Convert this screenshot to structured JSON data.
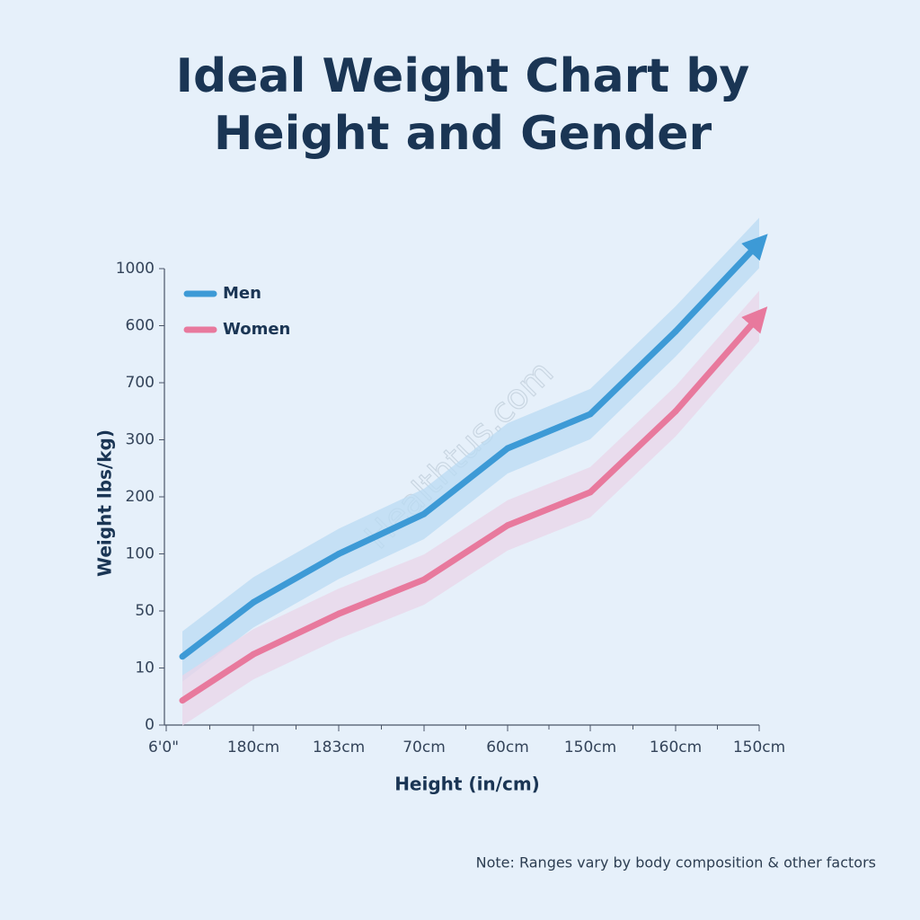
{
  "chart_data": {
    "type": "line",
    "title": [
      "Ideal Weight Chart by",
      "Height and Gender"
    ],
    "x_label": "Height (in/cm)",
    "y_label": "Weight lbs/kg)",
    "categories": [
      "6'0\"",
      "180cm",
      "183cm",
      "70cm",
      "60cm",
      "150cm",
      "160cm",
      "150cm"
    ],
    "series": [
      {
        "name": "Men",
        "color": "#3d9ad6",
        "band_color": "#b9dbf3",
        "values": [
          1.2,
          2.15,
          3.0,
          3.7,
          4.85,
          5.45,
          6.9,
          8.45
        ]
      },
      {
        "name": "Women",
        "color": "#e8799d",
        "band_color": "#ead6e8",
        "values": [
          0.43,
          1.24,
          1.95,
          2.55,
          3.5,
          4.08,
          5.5,
          7.17
        ]
      }
    ],
    "ylim": [
      0,
      8
    ],
    "yticks": [
      {
        "value": 0,
        "label": "0"
      },
      {
        "value": 1,
        "label": "10"
      },
      {
        "value": 2,
        "label": "50"
      },
      {
        "value": 3,
        "label": "100"
      },
      {
        "value": 4,
        "label": "200"
      },
      {
        "value": 5,
        "label": "300"
      },
      {
        "value": 6,
        "label": "700"
      },
      {
        "value": 7,
        "label": "600"
      },
      {
        "value": 8,
        "label": "1000"
      }
    ],
    "watermark": "Healthtus.com",
    "note": "Note: Ranges vary by body composition & other factors",
    "legend": "top-left"
  }
}
